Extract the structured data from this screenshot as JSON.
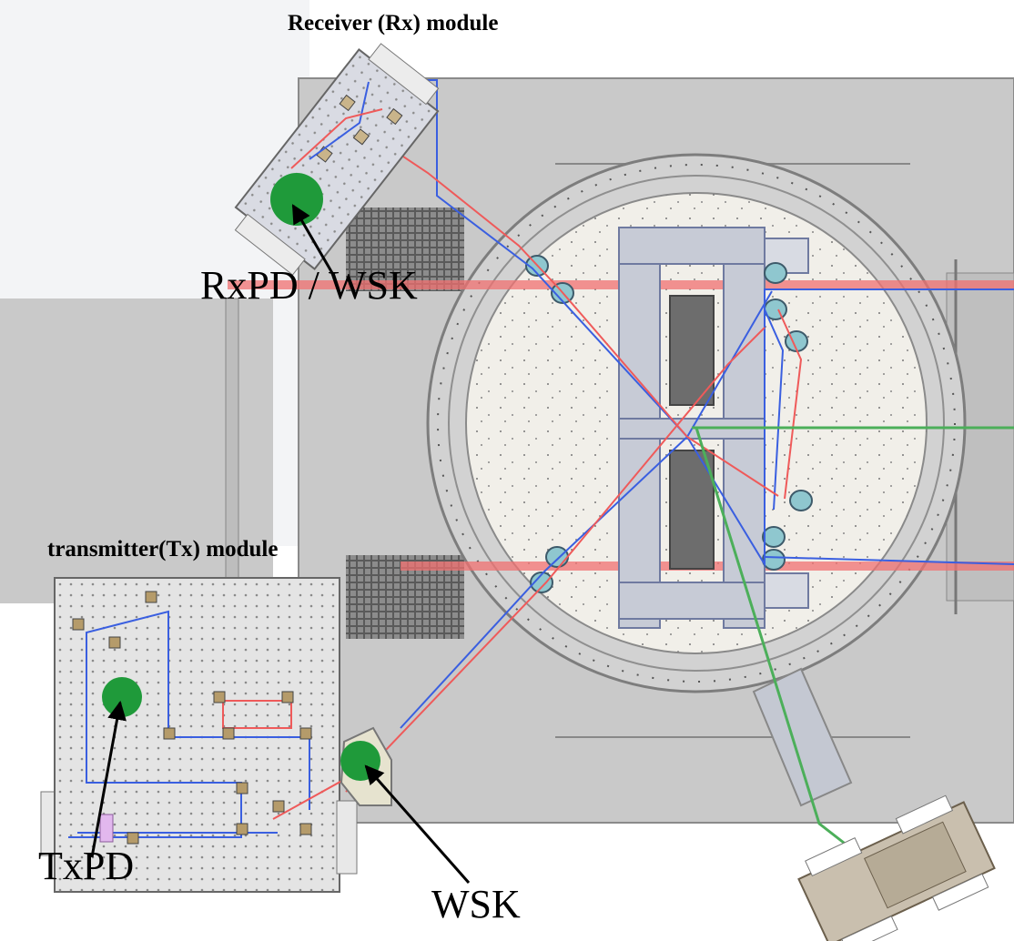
{
  "labels": {
    "rx_module": "Receiver (Rx) module",
    "tx_module": "transmitter(Tx) module",
    "rxpd_wsk": "RxPD / WSK",
    "txpd": "TxPD",
    "wsk": "WSK"
  },
  "colors": {
    "chamber": "#c9c9c9",
    "chamber_edge": "#8a8a8a",
    "breadboard": "#e3e3e3",
    "beam_blue": "#3a5fe0",
    "beam_red": "#ef5a5a",
    "beam_green": "#4caf5a",
    "marker_green": "#1f9a3a",
    "pad_red": "#f07070"
  }
}
